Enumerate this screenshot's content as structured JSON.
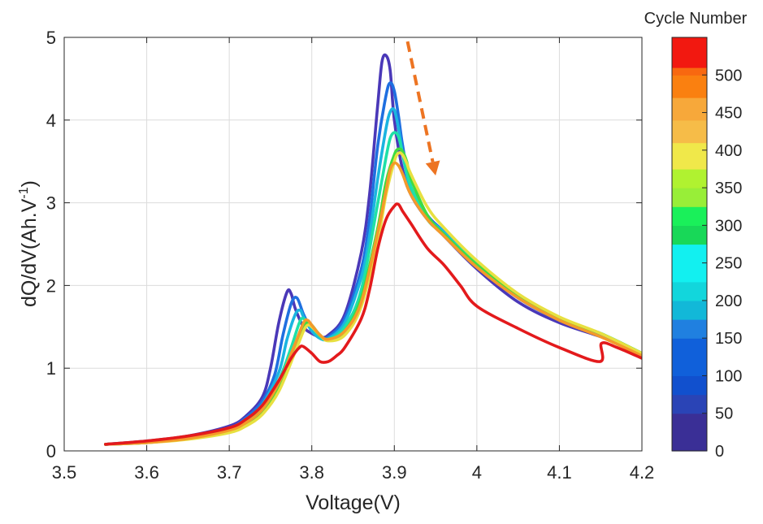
{
  "chart_data": {
    "type": "line",
    "title": "",
    "xlabel": "Voltage(V)",
    "ylabel_main": "dQ/dV(Ah.V",
    "ylabel_sup": "-1",
    "ylabel_close": ")",
    "xlim": [
      3.5,
      4.2
    ],
    "ylim": [
      0,
      5
    ],
    "grid": true,
    "x_ticks": [
      3.5,
      3.6,
      3.7,
      3.8,
      3.9,
      4.0,
      4.1,
      4.2
    ],
    "x_tick_labels": [
      "3.5",
      "3.6",
      "3.7",
      "3.8",
      "3.9",
      "4",
      "4.1",
      "4.2"
    ],
    "y_ticks": [
      0,
      1,
      2,
      3,
      4,
      5
    ],
    "y_tick_labels": [
      "0",
      "1",
      "2",
      "3",
      "4",
      "5"
    ],
    "annotation": {
      "type": "dashed-arrow",
      "color": "#ED7422",
      "meaning": "decreasing peak with increasing cycle number",
      "from": [
        3.916,
        4.95
      ],
      "to": [
        3.95,
        3.33
      ]
    },
    "colorbar": {
      "title": "Cycle Number",
      "range": [
        0,
        550
      ],
      "ticks": [
        0,
        50,
        100,
        150,
        200,
        250,
        300,
        350,
        400,
        450,
        500
      ],
      "tick_labels": [
        "0",
        "50",
        "100",
        "150",
        "200",
        "250",
        "300",
        "350",
        "400",
        "450",
        "500"
      ],
      "color_stops": [
        {
          "v": 0,
          "color": "#3A2F96"
        },
        {
          "v": 50,
          "color": "#2A44B6"
        },
        {
          "v": 75,
          "color": "#1150CE"
        },
        {
          "v": 100,
          "color": "#1060DA"
        },
        {
          "v": 150,
          "color": "#2080E0"
        },
        {
          "v": 175,
          "color": "#12B8D8"
        },
        {
          "v": 200,
          "color": "#12D6DC"
        },
        {
          "v": 225,
          "color": "#12F0F0"
        },
        {
          "v": 275,
          "color": "#18D858"
        },
        {
          "v": 300,
          "color": "#1AF05A"
        },
        {
          "v": 325,
          "color": "#98EE38"
        },
        {
          "v": 350,
          "color": "#B0F230"
        },
        {
          "v": 375,
          "color": "#F0E84A"
        },
        {
          "v": 410,
          "color": "#F6BC48"
        },
        {
          "v": 440,
          "color": "#F7A83A"
        },
        {
          "v": 470,
          "color": "#FA8010"
        },
        {
          "v": 500,
          "color": "#F86810"
        },
        {
          "v": 510,
          "color": "#F21810"
        },
        {
          "v": 550,
          "color": "#FF0000"
        }
      ]
    },
    "series": [
      {
        "name": "cycle 0",
        "color": "#4A38B8",
        "x": [
          3.55,
          3.6,
          3.65,
          3.7,
          3.72,
          3.74,
          3.75,
          3.76,
          3.77,
          3.775,
          3.78,
          3.79,
          3.8,
          3.81,
          3.82,
          3.84,
          3.86,
          3.87,
          3.88,
          3.885,
          3.89,
          3.895,
          3.9,
          3.91,
          3.92,
          3.94,
          3.96,
          4.0,
          4.05,
          4.1,
          4.15,
          4.2
        ],
        "y": [
          0.08,
          0.12,
          0.18,
          0.3,
          0.42,
          0.65,
          1.0,
          1.55,
          1.92,
          1.9,
          1.72,
          1.5,
          1.42,
          1.38,
          1.4,
          1.65,
          2.4,
          3.1,
          4.2,
          4.7,
          4.78,
          4.6,
          4.0,
          3.4,
          3.1,
          2.8,
          2.6,
          2.2,
          1.8,
          1.55,
          1.38,
          1.18
        ]
      },
      {
        "name": "cycle 50",
        "color": "#1F6FE0",
        "x": [
          3.55,
          3.6,
          3.65,
          3.7,
          3.72,
          3.74,
          3.755,
          3.765,
          3.775,
          3.782,
          3.79,
          3.8,
          3.81,
          3.82,
          3.84,
          3.86,
          3.87,
          3.88,
          3.89,
          3.895,
          3.9,
          3.905,
          3.91,
          3.92,
          3.94,
          3.96,
          4.0,
          4.05,
          4.1,
          4.15,
          4.2
        ],
        "y": [
          0.08,
          0.11,
          0.17,
          0.28,
          0.4,
          0.6,
          0.92,
          1.4,
          1.78,
          1.85,
          1.65,
          1.46,
          1.38,
          1.38,
          1.6,
          2.2,
          2.8,
          3.7,
          4.3,
          4.45,
          4.35,
          4.05,
          3.7,
          3.2,
          2.85,
          2.65,
          2.25,
          1.85,
          1.58,
          1.4,
          1.18
        ]
      },
      {
        "name": "cycle 150",
        "color": "#1BB4E0",
        "x": [
          3.55,
          3.6,
          3.65,
          3.7,
          3.72,
          3.74,
          3.76,
          3.77,
          3.78,
          3.786,
          3.79,
          3.8,
          3.81,
          3.82,
          3.84,
          3.86,
          3.87,
          3.88,
          3.89,
          3.895,
          3.9,
          3.905,
          3.91,
          3.92,
          3.94,
          3.96,
          4.0,
          4.05,
          4.1,
          4.15,
          4.2
        ],
        "y": [
          0.08,
          0.11,
          0.16,
          0.26,
          0.38,
          0.56,
          0.95,
          1.35,
          1.65,
          1.7,
          1.62,
          1.45,
          1.36,
          1.36,
          1.55,
          2.1,
          2.6,
          3.3,
          3.9,
          4.1,
          4.12,
          3.9,
          3.6,
          3.15,
          2.82,
          2.65,
          2.28,
          1.88,
          1.6,
          1.42,
          1.18
        ]
      },
      {
        "name": "cycle 250",
        "color": "#1FE0A8",
        "x": [
          3.55,
          3.6,
          3.65,
          3.7,
          3.72,
          3.74,
          3.76,
          3.775,
          3.785,
          3.79,
          3.8,
          3.81,
          3.82,
          3.84,
          3.86,
          3.88,
          3.89,
          3.895,
          3.9,
          3.905,
          3.91,
          3.92,
          3.94,
          3.96,
          4.0,
          4.05,
          4.1,
          4.15,
          4.2
        ],
        "y": [
          0.08,
          0.1,
          0.15,
          0.25,
          0.35,
          0.52,
          0.85,
          1.25,
          1.55,
          1.6,
          1.5,
          1.38,
          1.35,
          1.5,
          1.95,
          3.0,
          3.55,
          3.78,
          3.85,
          3.8,
          3.6,
          3.2,
          2.8,
          2.62,
          2.26,
          1.88,
          1.6,
          1.42,
          1.18
        ]
      },
      {
        "name": "cycle 300",
        "color": "#40DC40",
        "x": [
          3.55,
          3.6,
          3.65,
          3.7,
          3.72,
          3.74,
          3.76,
          3.78,
          3.79,
          3.795,
          3.8,
          3.81,
          3.82,
          3.84,
          3.86,
          3.88,
          3.89,
          3.9,
          3.905,
          3.91,
          3.915,
          3.92,
          3.94,
          3.96,
          4.0,
          4.05,
          4.1,
          4.15,
          4.2
        ],
        "y": [
          0.08,
          0.1,
          0.15,
          0.24,
          0.33,
          0.48,
          0.78,
          1.25,
          1.5,
          1.55,
          1.52,
          1.4,
          1.35,
          1.45,
          1.85,
          2.7,
          3.25,
          3.58,
          3.65,
          3.62,
          3.5,
          3.3,
          2.85,
          2.62,
          2.25,
          1.88,
          1.6,
          1.42,
          1.18
        ]
      },
      {
        "name": "cycle 400",
        "color": "#E8E040",
        "x": [
          3.55,
          3.6,
          3.65,
          3.7,
          3.72,
          3.74,
          3.76,
          3.78,
          3.79,
          3.795,
          3.8,
          3.81,
          3.82,
          3.84,
          3.86,
          3.88,
          3.89,
          3.9,
          3.905,
          3.91,
          3.915,
          3.92,
          3.94,
          3.96,
          4.0,
          4.05,
          4.1,
          4.15,
          4.2
        ],
        "y": [
          0.08,
          0.1,
          0.14,
          0.22,
          0.3,
          0.44,
          0.72,
          1.2,
          1.45,
          1.52,
          1.5,
          1.4,
          1.33,
          1.4,
          1.75,
          2.55,
          3.1,
          3.5,
          3.6,
          3.58,
          3.48,
          3.35,
          2.95,
          2.7,
          2.3,
          1.9,
          1.62,
          1.42,
          1.18
        ]
      },
      {
        "name": "cycle 500",
        "color": "#F49A2A",
        "x": [
          3.55,
          3.6,
          3.65,
          3.7,
          3.72,
          3.74,
          3.76,
          3.78,
          3.79,
          3.795,
          3.8,
          3.81,
          3.82,
          3.84,
          3.86,
          3.88,
          3.89,
          3.895,
          3.9,
          3.905,
          3.91,
          3.92,
          3.94,
          3.96,
          4.0,
          4.05,
          4.1,
          4.15,
          4.2
        ],
        "y": [
          0.08,
          0.1,
          0.15,
          0.25,
          0.34,
          0.5,
          0.82,
          1.3,
          1.55,
          1.58,
          1.52,
          1.4,
          1.35,
          1.45,
          1.8,
          2.65,
          3.15,
          3.4,
          3.48,
          3.45,
          3.35,
          3.1,
          2.8,
          2.6,
          2.22,
          1.85,
          1.58,
          1.38,
          1.15
        ]
      },
      {
        "name": "cycle 550",
        "color": "#E31A1C",
        "x": [
          3.55,
          3.6,
          3.65,
          3.7,
          3.72,
          3.74,
          3.76,
          3.775,
          3.785,
          3.79,
          3.8,
          3.81,
          3.82,
          3.83,
          3.84,
          3.86,
          3.87,
          3.88,
          3.89,
          3.9,
          3.905,
          3.91,
          3.92,
          3.94,
          3.96,
          3.98,
          4.0,
          4.05,
          4.1,
          4.149,
          4.151,
          4.17,
          4.2
        ],
        "y": [
          0.08,
          0.12,
          0.18,
          0.28,
          0.38,
          0.55,
          0.85,
          1.12,
          1.25,
          1.26,
          1.18,
          1.08,
          1.08,
          1.15,
          1.25,
          1.6,
          1.95,
          2.45,
          2.8,
          2.96,
          2.98,
          2.9,
          2.75,
          2.45,
          2.25,
          2.0,
          1.75,
          1.48,
          1.25,
          1.08,
          1.3,
          1.25,
          1.12
        ]
      }
    ]
  }
}
